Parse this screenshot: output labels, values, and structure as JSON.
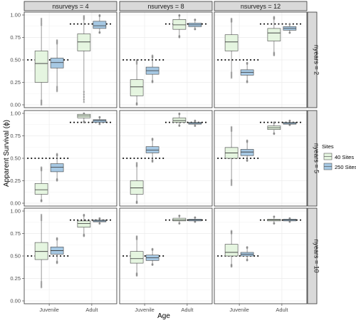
{
  "chart_data": {
    "type": "boxplot",
    "xlabel": "Age",
    "ylabel": "Apparent Survival (ϕ)",
    "ylim": [
      0,
      1
    ],
    "yticks": [
      "0.00",
      "0.25",
      "0.50",
      "0.75",
      "1.00"
    ],
    "categories": [
      "Juvenile",
      "Adult"
    ],
    "col_facets": [
      "nsurveys = 4",
      "nsurveys = 8",
      "nsurveys = 12"
    ],
    "row_facets": [
      "nyears = 2",
      "nyears = 5",
      "nyears = 10"
    ],
    "legend": {
      "title": "Sites",
      "entries": [
        {
          "name": "40 Sites",
          "color": "#e5f5e0"
        },
        {
          "name": "250 Sites",
          "color": "#a6c8e3"
        }
      ]
    },
    "reference_lines": {
      "Juvenile": 0.5,
      "Adult": 0.9
    },
    "panels": [
      {
        "row": 0,
        "col": 0,
        "boxes": {
          "Juvenile": {
            "40 Sites": [
              0.0,
              0.25,
              0.46,
              0.6,
              0.96
            ],
            "250 Sites": [
              0.15,
              0.41,
              0.47,
              0.52,
              0.72
            ]
          },
          "Adult": {
            "40 Sites": [
              0.03,
              0.6,
              0.7,
              0.79,
              0.99
            ],
            "250 Sites": [
              0.8,
              0.85,
              0.88,
              0.93,
              1.0
            ]
          }
        }
      },
      {
        "row": 0,
        "col": 1,
        "boxes": {
          "Juvenile": {
            "40 Sites": [
              0.0,
              0.1,
              0.2,
              0.28,
              0.5
            ],
            "250 Sites": [
              0.25,
              0.34,
              0.38,
              0.42,
              0.55
            ]
          },
          "Adult": {
            "40 Sites": [
              0.75,
              0.84,
              0.89,
              0.95,
              1.0
            ],
            "250 Sites": [
              0.84,
              0.87,
              0.89,
              0.91,
              0.95
            ]
          }
        }
      },
      {
        "row": 0,
        "col": 2,
        "boxes": {
          "Juvenile": {
            "40 Sites": [
              0.3,
              0.6,
              0.7,
              0.78,
              0.96
            ],
            "250 Sites": [
              0.25,
              0.33,
              0.36,
              0.39,
              0.47
            ]
          },
          "Adult": {
            "40 Sites": [
              0.55,
              0.71,
              0.8,
              0.85,
              0.98
            ],
            "250 Sites": [
              0.8,
              0.83,
              0.85,
              0.87,
              0.9
            ]
          }
        }
      },
      {
        "row": 1,
        "col": 0,
        "boxes": {
          "Juvenile": {
            "40 Sites": [
              0.02,
              0.1,
              0.15,
              0.22,
              0.4
            ],
            "250 Sites": [
              0.25,
              0.35,
              0.4,
              0.44,
              0.55
            ]
          },
          "Adult": {
            "40 Sites": [
              0.9,
              0.95,
              0.97,
              0.99,
              1.0
            ],
            "250 Sites": [
              0.88,
              0.9,
              0.92,
              0.93,
              0.96
            ]
          }
        }
      },
      {
        "row": 1,
        "col": 1,
        "boxes": {
          "Juvenile": {
            "40 Sites": [
              0.0,
              0.1,
              0.17,
              0.25,
              0.45
            ],
            "250 Sites": [
              0.46,
              0.56,
              0.59,
              0.63,
              0.72
            ]
          },
          "Adult": {
            "40 Sites": [
              0.86,
              0.9,
              0.92,
              0.95,
              1.0
            ],
            "250 Sites": [
              0.86,
              0.88,
              0.89,
              0.9,
              0.92
            ]
          }
        }
      },
      {
        "row": 1,
        "col": 2,
        "boxes": {
          "Juvenile": {
            "40 Sites": [
              0.2,
              0.5,
              0.56,
              0.62,
              0.85
            ],
            "250 Sites": [
              0.47,
              0.53,
              0.57,
              0.6,
              0.7
            ]
          },
          "Adult": {
            "40 Sites": [
              0.77,
              0.82,
              0.84,
              0.86,
              0.9
            ],
            "250 Sites": [
              0.87,
              0.88,
              0.89,
              0.9,
              0.92
            ]
          }
        }
      },
      {
        "row": 2,
        "col": 0,
        "boxes": {
          "Juvenile": {
            "40 Sites": [
              0.15,
              0.46,
              0.55,
              0.65,
              0.96
            ],
            "250 Sites": [
              0.42,
              0.52,
              0.56,
              0.6,
              0.7
            ]
          },
          "Adult": {
            "40 Sites": [
              0.72,
              0.82,
              0.86,
              0.89,
              0.96
            ],
            "250 Sites": [
              0.86,
              0.88,
              0.89,
              0.9,
              0.92
            ]
          }
        }
      },
      {
        "row": 2,
        "col": 1,
        "boxes": {
          "Juvenile": {
            "40 Sites": [
              0.28,
              0.42,
              0.47,
              0.55,
              0.72
            ],
            "250 Sites": [
              0.4,
              0.45,
              0.48,
              0.51,
              0.58
            ]
          },
          "Adult": {
            "40 Sites": [
              0.86,
              0.89,
              0.9,
              0.92,
              0.95
            ],
            "250 Sites": [
              0.88,
              0.89,
              0.9,
              0.91,
              0.93
            ]
          }
        }
      },
      {
        "row": 2,
        "col": 2,
        "boxes": {
          "Juvenile": {
            "40 Sites": [
              0.38,
              0.5,
              0.54,
              0.63,
              0.78
            ],
            "250 Sites": [
              0.45,
              0.5,
              0.52,
              0.54,
              0.6
            ]
          },
          "Adult": {
            "40 Sites": [
              0.86,
              0.89,
              0.9,
              0.91,
              0.94
            ],
            "250 Sites": [
              0.88,
              0.89,
              0.9,
              0.91,
              0.92
            ]
          }
        }
      }
    ]
  }
}
